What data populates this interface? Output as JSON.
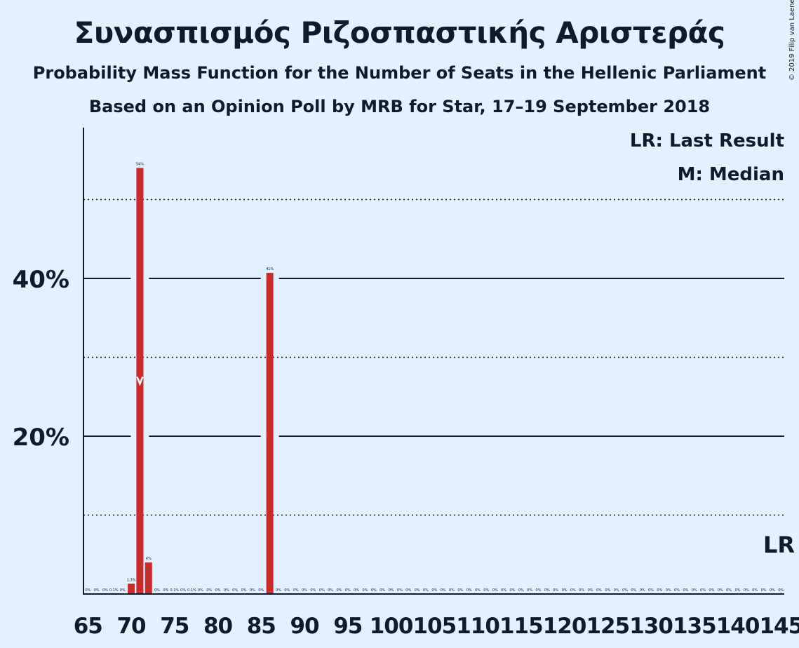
{
  "title": "Συνασπισμός Ριζοσπαστικής Αριστεράς",
  "subtitle": "Probability Mass Function for the Number of Seats in the Hellenic Parliament",
  "subtitle2": "Based on an Opinion Poll by MRB for Star, 17–19 September 2018",
  "copyright": "© 2019 Filip van Laenen",
  "legend": {
    "last_result": "LR: Last Result",
    "median": "M: Median"
  },
  "markers": {
    "last_result_label": "LR",
    "last_result_seat": 145,
    "median_label": "M",
    "median_seat": 71
  },
  "colors": {
    "bar": "#cc2a2a",
    "background": "#e3f0ff",
    "text": "#0d1b2a"
  },
  "chart_data": {
    "type": "bar",
    "xlim": [
      65,
      145
    ],
    "ylim": [
      0,
      59
    ],
    "y_ticks_labeled": [
      20,
      40
    ],
    "y_ticks_labels": [
      "20%",
      "40%"
    ],
    "y_ticks_dotted": [
      10,
      30,
      50
    ],
    "x_ticks": [
      65,
      70,
      75,
      80,
      85,
      90,
      95,
      100,
      105,
      110,
      115,
      120,
      125,
      130,
      135,
      140,
      145
    ],
    "x_tick_labels": [
      "65",
      "70",
      "75",
      "80",
      "85",
      "90",
      "95",
      "100",
      "105",
      "110",
      "115",
      "120",
      "125",
      "130",
      "135",
      "140",
      "145"
    ],
    "grid": true,
    "legend_position": "top-right",
    "bars": [
      {
        "x": 65,
        "value": 0,
        "label": "0%"
      },
      {
        "x": 66,
        "value": 0,
        "label": "0%"
      },
      {
        "x": 67,
        "value": 0,
        "label": "0%"
      },
      {
        "x": 68,
        "value": 0.1,
        "label": "0.1%"
      },
      {
        "x": 69,
        "value": 0,
        "label": "0%"
      },
      {
        "x": 70,
        "value": 1.3,
        "label": "1.3%"
      },
      {
        "x": 71,
        "value": 54,
        "label": "54%"
      },
      {
        "x": 72,
        "value": 4,
        "label": "4%"
      },
      {
        "x": 73,
        "value": 0,
        "label": "0%"
      },
      {
        "x": 74,
        "value": 0,
        "label": "0%"
      },
      {
        "x": 75,
        "value": 0.1,
        "label": "0.1%"
      },
      {
        "x": 76,
        "value": 0,
        "label": "0%"
      },
      {
        "x": 77,
        "value": 0.1,
        "label": "0.1%"
      },
      {
        "x": 78,
        "value": 0,
        "label": "0%"
      },
      {
        "x": 79,
        "value": 0,
        "label": "0%"
      },
      {
        "x": 80,
        "value": 0,
        "label": "0%"
      },
      {
        "x": 81,
        "value": 0,
        "label": "0%"
      },
      {
        "x": 82,
        "value": 0,
        "label": "0%"
      },
      {
        "x": 83,
        "value": 0,
        "label": "0%"
      },
      {
        "x": 84,
        "value": 0,
        "label": "0%"
      },
      {
        "x": 85,
        "value": 0,
        "label": "0%"
      },
      {
        "x": 86,
        "value": 40.7,
        "label": "41%"
      },
      {
        "x": 87,
        "value": 0,
        "label": "0%"
      },
      {
        "x": 88,
        "value": 0,
        "label": "0%"
      },
      {
        "x": 89,
        "value": 0,
        "label": "0%"
      },
      {
        "x": 90,
        "value": 0,
        "label": "0%"
      },
      {
        "x": 91,
        "value": 0,
        "label": "0%"
      },
      {
        "x": 92,
        "value": 0,
        "label": "0%"
      },
      {
        "x": 93,
        "value": 0,
        "label": "0%"
      },
      {
        "x": 94,
        "value": 0,
        "label": "0%"
      },
      {
        "x": 95,
        "value": 0,
        "label": "0%"
      },
      {
        "x": 96,
        "value": 0,
        "label": "0%"
      },
      {
        "x": 97,
        "value": 0,
        "label": "0%"
      },
      {
        "x": 98,
        "value": 0,
        "label": "0%"
      },
      {
        "x": 99,
        "value": 0,
        "label": "0%"
      },
      {
        "x": 100,
        "value": 0,
        "label": "0%"
      },
      {
        "x": 101,
        "value": 0,
        "label": "0%"
      },
      {
        "x": 102,
        "value": 0,
        "label": "0%"
      },
      {
        "x": 103,
        "value": 0,
        "label": "0%"
      },
      {
        "x": 104,
        "value": 0,
        "label": "0%"
      },
      {
        "x": 105,
        "value": 0,
        "label": "0%"
      },
      {
        "x": 106,
        "value": 0,
        "label": "0%"
      },
      {
        "x": 107,
        "value": 0,
        "label": "0%"
      },
      {
        "x": 108,
        "value": 0,
        "label": "0%"
      },
      {
        "x": 109,
        "value": 0,
        "label": "0%"
      },
      {
        "x": 110,
        "value": 0,
        "label": "0%"
      },
      {
        "x": 111,
        "value": 0,
        "label": "0%"
      },
      {
        "x": 112,
        "value": 0,
        "label": "0%"
      },
      {
        "x": 113,
        "value": 0,
        "label": "0%"
      },
      {
        "x": 114,
        "value": 0,
        "label": "0%"
      },
      {
        "x": 115,
        "value": 0,
        "label": "0%"
      },
      {
        "x": 116,
        "value": 0,
        "label": "0%"
      },
      {
        "x": 117,
        "value": 0,
        "label": "0%"
      },
      {
        "x": 118,
        "value": 0,
        "label": "0%"
      },
      {
        "x": 119,
        "value": 0,
        "label": "0%"
      },
      {
        "x": 120,
        "value": 0,
        "label": "0%"
      },
      {
        "x": 121,
        "value": 0,
        "label": "0%"
      },
      {
        "x": 122,
        "value": 0,
        "label": "0%"
      },
      {
        "x": 123,
        "value": 0,
        "label": "0%"
      },
      {
        "x": 124,
        "value": 0,
        "label": "0%"
      },
      {
        "x": 125,
        "value": 0,
        "label": "0%"
      },
      {
        "x": 126,
        "value": 0,
        "label": "0%"
      },
      {
        "x": 127,
        "value": 0,
        "label": "0%"
      },
      {
        "x": 128,
        "value": 0,
        "label": "0%"
      },
      {
        "x": 129,
        "value": 0,
        "label": "0%"
      },
      {
        "x": 130,
        "value": 0,
        "label": "0%"
      },
      {
        "x": 131,
        "value": 0,
        "label": "0%"
      },
      {
        "x": 132,
        "value": 0,
        "label": "0%"
      },
      {
        "x": 133,
        "value": 0,
        "label": "0%"
      },
      {
        "x": 134,
        "value": 0,
        "label": "0%"
      },
      {
        "x": 135,
        "value": 0,
        "label": "0%"
      },
      {
        "x": 136,
        "value": 0,
        "label": "0%"
      },
      {
        "x": 137,
        "value": 0,
        "label": "0%"
      },
      {
        "x": 138,
        "value": 0,
        "label": "0%"
      },
      {
        "x": 139,
        "value": 0,
        "label": "0%"
      },
      {
        "x": 140,
        "value": 0,
        "label": "0%"
      },
      {
        "x": 141,
        "value": 0,
        "label": "0%"
      },
      {
        "x": 142,
        "value": 0,
        "label": "0%"
      },
      {
        "x": 143,
        "value": 0,
        "label": "0%"
      },
      {
        "x": 144,
        "value": 0,
        "label": "0%"
      },
      {
        "x": 145,
        "value": 0,
        "label": "0%"
      }
    ]
  }
}
